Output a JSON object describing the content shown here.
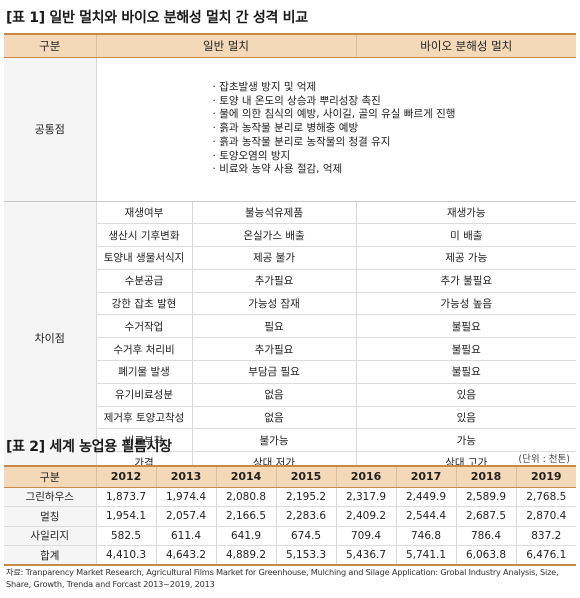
{
  "table1": {
    "title": "[표 1] 일반 멀치와 바이오 분해성 멀치 간 성격 비교",
    "headers": [
      "구분",
      "일반 멀치",
      "바이오 분해성 멀치"
    ],
    "common": {
      "label": "공통점",
      "items": [
        "잡초발생 방지 및 억제",
        "토양 내 온도의 상승과 뿌리성장 촉진",
        "물에 의한 침식의 예방, 사이길, 골의 유실 빠르게 진행",
        "흙과 농작물 분리로 병해충 예방",
        "흙과 농작물 분리로 농작물의 청결 유지",
        "토양오염의 방지",
        "비료와 농약 사용 절감, 억제"
      ]
    },
    "diff_label": "차이점",
    "diff_rows": [
      [
        "재생여부",
        "불능석유제품",
        "재생가능"
      ],
      [
        "생산시 기후변화",
        "온실가스 배출",
        "미 배출"
      ],
      [
        "토양내 생물서식지",
        "제공 불가",
        "제공 가능"
      ],
      [
        "수분공급",
        "추가필요",
        "추가 불필요"
      ],
      [
        "강한 잡초 발현",
        "가능성 잠재",
        "가능성 높음"
      ],
      [
        "수거작업",
        "필요",
        "불필요"
      ],
      [
        "수거후 처리비",
        "추가필요",
        "불필요"
      ],
      [
        "폐기물 발생",
        "부담금 필요",
        "불필요"
      ],
      [
        "유기비료성분",
        "없음",
        "있음"
      ],
      [
        "제거후 토양고착성",
        "없음",
        "있음"
      ],
      [
        "비료부착",
        "불가능",
        "가능"
      ],
      [
        "가격",
        "상대 저가",
        "상대 고가"
      ]
    ]
  },
  "table2": {
    "title": "[표 2] 세계 농업용 필름시장",
    "unit": "(단위 : 천톤)",
    "headers": [
      "구분",
      "2012",
      "2013",
      "2014",
      "2015",
      "2016",
      "2017",
      "2018",
      "2019"
    ],
    "rows": [
      [
        "그린하우스",
        "1,873.7",
        "1,974.4",
        "2,080.8",
        "2,195.2",
        "2,317.9",
        "2,449.9",
        "2,589.9",
        "2,768.5"
      ],
      [
        "멀칭",
        "1,954.1",
        "2,057.4",
        "2,166.5",
        "2,283.6",
        "2,409.2",
        "2,544.4",
        "2,687.5",
        "2,870.4"
      ],
      [
        "사일리지",
        "582.5",
        "611.4",
        "641.9",
        "674.5",
        "709.4",
        "746.8",
        "786.4",
        "837.2"
      ],
      [
        "합계",
        "4,410.3",
        "4,643.2",
        "4,889.2",
        "5,153.3",
        "5,436.7",
        "5,741.1",
        "6,063.8",
        "6,476.1"
      ]
    ],
    "source": "자료: Tranparency Market Research, Agricultural Films Market for Greenhouse, Mulching and Silage Application: Grobal Industry Analysis, Size, Share, Growth, Trenda and Forcast 2013~2019, 2013"
  }
}
